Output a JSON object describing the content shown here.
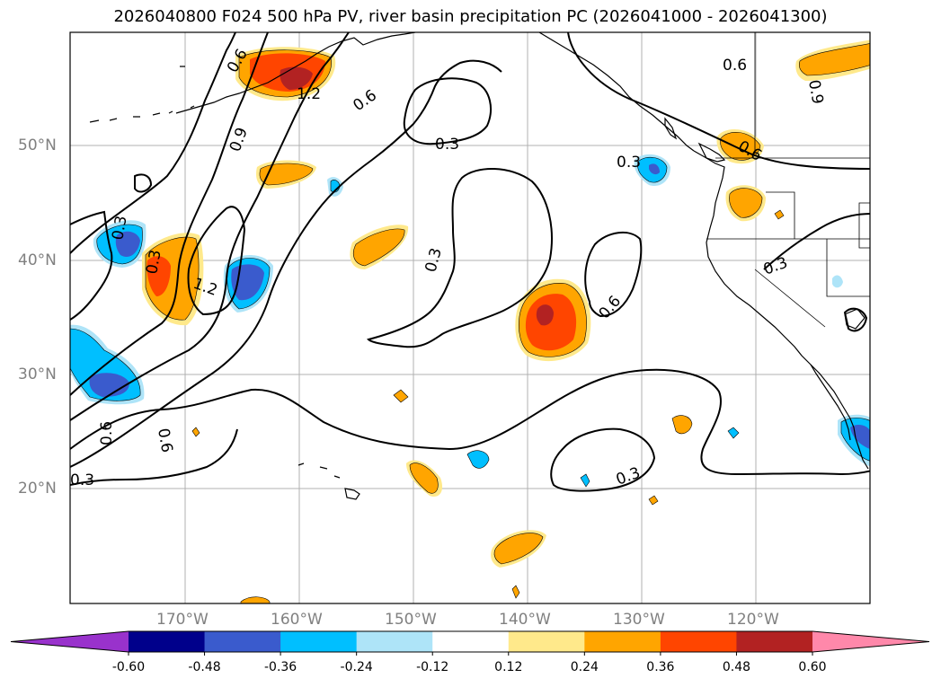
{
  "title": "2026040800 F024 500 hPa PV, river basin precipitation PC (2026041000 - 2026041300)",
  "map": {
    "lat_labels": [
      "50°N",
      "40°N",
      "30°N",
      "20°N"
    ],
    "lon_labels": [
      "170°W",
      "160°W",
      "150°W",
      "140°W",
      "130°W",
      "120°W"
    ],
    "contour_labels": [
      "0.6",
      "1.2",
      "0.6",
      "0.9",
      "0.3",
      "0.3",
      "1.2",
      "0.3",
      "0.6",
      "0.9",
      "0.6",
      "0.3",
      "0.3",
      "0.6",
      "0.3",
      "0.3",
      "0.6",
      "0.6",
      "0.9",
      "0.3",
      "0.6"
    ]
  },
  "colorbar": {
    "ticks": [
      "-0.60",
      "-0.48",
      "-0.36",
      "-0.24",
      "-0.12",
      "0.12",
      "0.24",
      "0.36",
      "0.48",
      "0.60"
    ],
    "colors": {
      "under": "#9932cc",
      "bins": [
        "#00008b",
        "#3a5bcd",
        "#00bfff",
        "#aee4f8",
        "#ffffff",
        "#ffe98b",
        "#ffa500",
        "#ff4500",
        "#b22222"
      ],
      "over": "#ff88aa"
    }
  },
  "colors": {
    "land_outline": "#000000",
    "gridline": "#b0b0b0",
    "axis_label": "#808080",
    "pv_contour": "#000000"
  }
}
